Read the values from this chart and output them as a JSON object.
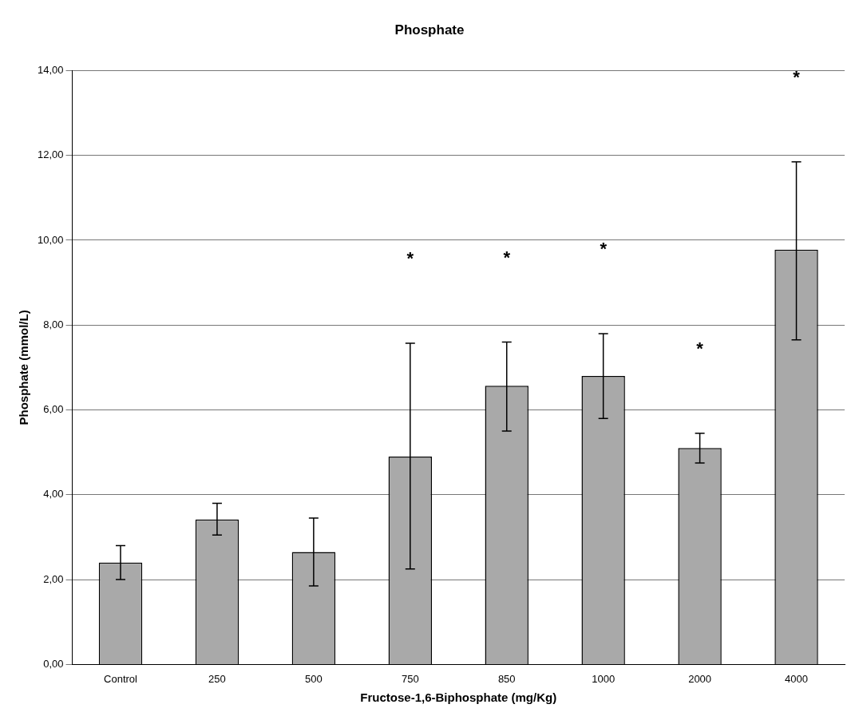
{
  "chart_data": {
    "type": "bar",
    "title": "Phosphate",
    "xlabel": "Fructose-1,6-Biphosphate (mg/Kg)",
    "ylabel": "Phosphate (mmol/L)",
    "categories": [
      "Control",
      "250",
      "500",
      "750",
      "850",
      "1000",
      "2000",
      "4000"
    ],
    "values": [
      2.4,
      3.42,
      2.65,
      4.9,
      6.57,
      6.8,
      5.1,
      9.78
    ],
    "errors": [
      [
        2.0,
        2.8
      ],
      [
        3.05,
        3.8
      ],
      [
        1.85,
        3.45
      ],
      [
        2.25,
        7.57
      ],
      [
        5.5,
        7.6
      ],
      [
        5.8,
        7.8
      ],
      [
        4.75,
        5.45
      ],
      [
        7.65,
        11.85
      ]
    ],
    "color": "#a9a9a9",
    "ylim": [
      0,
      14
    ],
    "yticks": [
      {
        "value": 0,
        "label": "0,00"
      },
      {
        "value": 2,
        "label": "2,00"
      },
      {
        "value": 4,
        "label": "4,00"
      },
      {
        "value": 6,
        "label": "6,00"
      },
      {
        "value": 8,
        "label": "8,00"
      },
      {
        "value": 10,
        "label": "10,00"
      },
      {
        "value": 12,
        "label": "12,00"
      },
      {
        "value": 14,
        "label": "14,00"
      }
    ],
    "grid": "y",
    "legend": false,
    "annotations": [
      "*",
      "*",
      "*",
      "*",
      "*"
    ]
  }
}
